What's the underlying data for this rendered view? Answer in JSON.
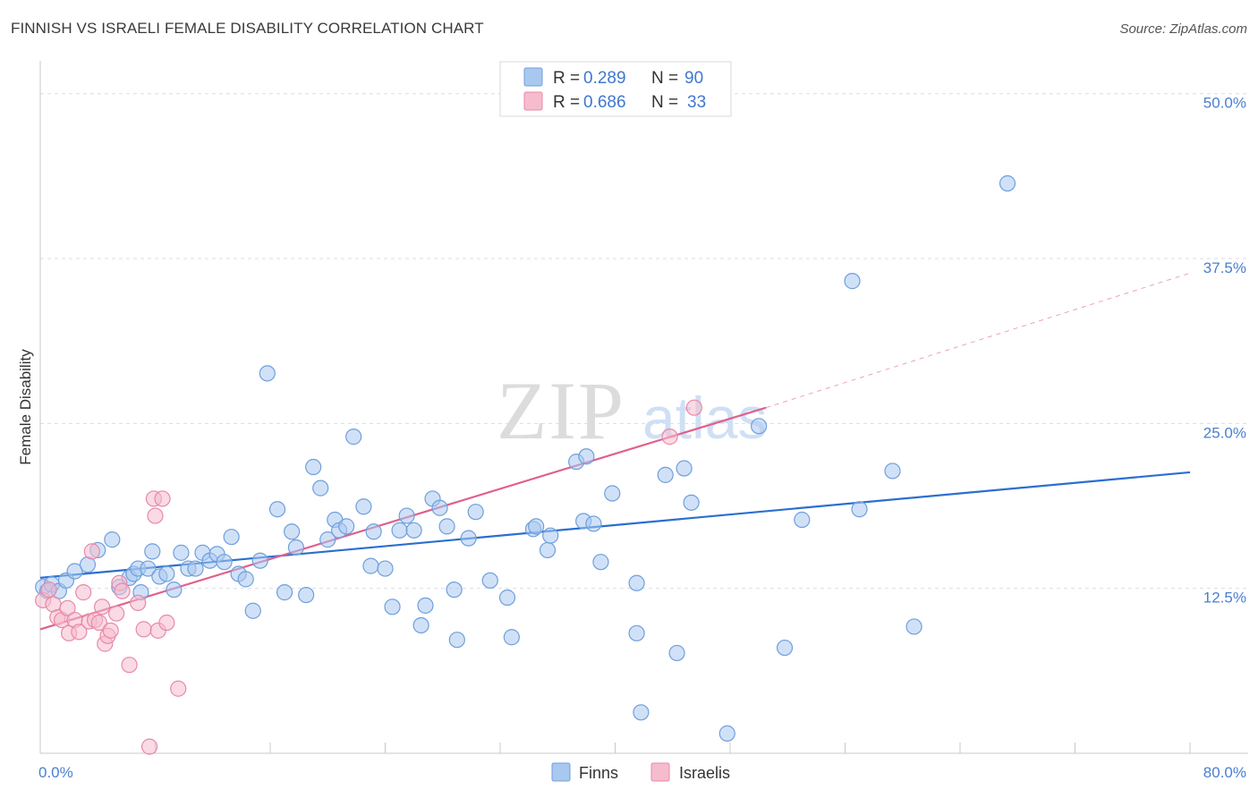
{
  "title": "FINNISH VS ISRAELI FEMALE DISABILITY CORRELATION CHART",
  "source": "Source: ZipAtlas.com",
  "watermark": {
    "zip": "ZIP",
    "atlas": "atlas"
  },
  "colors": {
    "finns_fill": "#a9c8f0",
    "finns_stroke": "#6f9fdc",
    "finns_line": "#2a6fd0",
    "israelis_fill": "#f6bccd",
    "israelis_stroke": "#e889a7",
    "israelis_line": "#e0608c",
    "tick": "#4a7fcf",
    "grid": "#d8dde6"
  },
  "legend": {
    "rows": [
      {
        "r_label": "R =",
        "r_value": "0.289",
        "n_label": "N =",
        "n_value": "90"
      },
      {
        "r_label": "R =",
        "r_value": "0.686",
        "n_label": "N =",
        "n_value": "33"
      }
    ]
  },
  "chart_data": {
    "type": "scatter",
    "title": "FINNISH VS ISRAELI FEMALE DISABILITY CORRELATION CHART",
    "xlabel": "",
    "ylabel": "Female Disability",
    "xlim": [
      0,
      80
    ],
    "ylim": [
      0,
      50
    ],
    "x_tick_labels": [
      "0.0%",
      "80.0%"
    ],
    "y_ticks": [
      12.5,
      25.0,
      37.5,
      50.0
    ],
    "y_tick_labels": [
      "12.5%",
      "25.0%",
      "37.5%",
      "50.0%"
    ],
    "grid": "horizontal-dashed",
    "legend_position": "top-center",
    "bottom_legend": [
      "Finns",
      "Israelis"
    ],
    "series": [
      {
        "name": "Finns",
        "r": 0.289,
        "n": 90,
        "trend": {
          "x": [
            0,
            80
          ],
          "y": [
            13.3,
            21.3
          ],
          "dashed_extension": false
        },
        "points": [
          [
            0.2,
            12.6
          ],
          [
            0.5,
            12.3
          ],
          [
            0.8,
            12.8
          ],
          [
            1.3,
            12.3
          ],
          [
            1.8,
            13.1
          ],
          [
            2.4,
            13.8
          ],
          [
            3.3,
            14.3
          ],
          [
            4.0,
            15.4
          ],
          [
            5.0,
            16.2
          ],
          [
            5.5,
            12.6
          ],
          [
            6.2,
            13.3
          ],
          [
            6.5,
            13.6
          ],
          [
            6.8,
            14.0
          ],
          [
            7.0,
            12.2
          ],
          [
            7.5,
            14.0
          ],
          [
            7.8,
            15.3
          ],
          [
            8.3,
            13.4
          ],
          [
            8.8,
            13.6
          ],
          [
            9.3,
            12.4
          ],
          [
            9.8,
            15.2
          ],
          [
            10.3,
            14.0
          ],
          [
            10.8,
            14.0
          ],
          [
            11.3,
            15.2
          ],
          [
            11.8,
            14.6
          ],
          [
            12.3,
            15.1
          ],
          [
            12.8,
            14.5
          ],
          [
            13.3,
            16.4
          ],
          [
            13.8,
            13.6
          ],
          [
            14.3,
            13.2
          ],
          [
            14.8,
            10.8
          ],
          [
            15.3,
            14.6
          ],
          [
            15.8,
            28.8
          ],
          [
            16.5,
            18.5
          ],
          [
            17.0,
            12.2
          ],
          [
            17.5,
            16.8
          ],
          [
            17.8,
            15.6
          ],
          [
            18.5,
            12.0
          ],
          [
            19.0,
            21.7
          ],
          [
            19.5,
            20.1
          ],
          [
            20.0,
            16.2
          ],
          [
            20.5,
            17.7
          ],
          [
            20.8,
            16.9
          ],
          [
            21.3,
            17.2
          ],
          [
            21.8,
            24.0
          ],
          [
            22.5,
            18.7
          ],
          [
            23.0,
            14.2
          ],
          [
            23.2,
            16.8
          ],
          [
            24.0,
            14.0
          ],
          [
            24.5,
            11.1
          ],
          [
            25.0,
            16.9
          ],
          [
            25.5,
            18.0
          ],
          [
            26.0,
            16.9
          ],
          [
            26.5,
            9.7
          ],
          [
            26.8,
            11.2
          ],
          [
            27.3,
            19.3
          ],
          [
            27.8,
            18.6
          ],
          [
            28.3,
            17.2
          ],
          [
            28.8,
            12.4
          ],
          [
            29.0,
            8.6
          ],
          [
            29.8,
            16.3
          ],
          [
            30.3,
            18.3
          ],
          [
            31.3,
            13.1
          ],
          [
            32.5,
            11.8
          ],
          [
            32.8,
            8.8
          ],
          [
            34.3,
            17.0
          ],
          [
            34.5,
            17.2
          ],
          [
            35.3,
            15.4
          ],
          [
            35.5,
            16.5
          ],
          [
            37.3,
            22.1
          ],
          [
            37.8,
            17.6
          ],
          [
            38.0,
            22.5
          ],
          [
            38.5,
            17.4
          ],
          [
            39.0,
            14.5
          ],
          [
            39.8,
            19.7
          ],
          [
            41.5,
            12.9
          ],
          [
            41.5,
            9.1
          ],
          [
            41.8,
            3.1
          ],
          [
            43.5,
            21.1
          ],
          [
            44.3,
            7.6
          ],
          [
            44.8,
            21.6
          ],
          [
            45.3,
            19.0
          ],
          [
            47.8,
            1.5
          ],
          [
            50.0,
            24.8
          ],
          [
            51.8,
            8.0
          ],
          [
            53.0,
            17.7
          ],
          [
            56.5,
            35.8
          ],
          [
            57.0,
            18.5
          ],
          [
            59.3,
            21.4
          ],
          [
            60.8,
            9.6
          ],
          [
            67.3,
            43.2
          ]
        ]
      },
      {
        "name": "Israelis",
        "r": 0.686,
        "n": 33,
        "trend": {
          "x": [
            0,
            50.5
          ],
          "y": [
            9.4,
            26.2
          ],
          "dashed_extension": {
            "x": [
              50.5,
              80
            ],
            "y": [
              26.2,
              36.4
            ]
          }
        },
        "points": [
          [
            0.2,
            11.6
          ],
          [
            0.6,
            12.4
          ],
          [
            0.9,
            11.3
          ],
          [
            1.2,
            10.3
          ],
          [
            1.5,
            10.1
          ],
          [
            1.9,
            11.0
          ],
          [
            2.0,
            9.1
          ],
          [
            2.4,
            10.1
          ],
          [
            2.7,
            9.2
          ],
          [
            3.0,
            12.2
          ],
          [
            3.4,
            10.0
          ],
          [
            3.6,
            15.3
          ],
          [
            3.8,
            10.1
          ],
          [
            4.1,
            9.9
          ],
          [
            4.3,
            11.1
          ],
          [
            4.5,
            8.3
          ],
          [
            4.7,
            8.9
          ],
          [
            4.9,
            9.3
          ],
          [
            5.3,
            10.6
          ],
          [
            5.5,
            12.9
          ],
          [
            5.7,
            12.3
          ],
          [
            6.2,
            6.7
          ],
          [
            6.8,
            11.4
          ],
          [
            7.2,
            9.4
          ],
          [
            7.6,
            0.5
          ],
          [
            7.9,
            19.3
          ],
          [
            8.0,
            18.0
          ],
          [
            8.2,
            9.3
          ],
          [
            8.5,
            19.3
          ],
          [
            8.8,
            9.9
          ],
          [
            9.6,
            4.9
          ],
          [
            43.8,
            24.0
          ],
          [
            45.5,
            26.2
          ]
        ]
      }
    ]
  }
}
